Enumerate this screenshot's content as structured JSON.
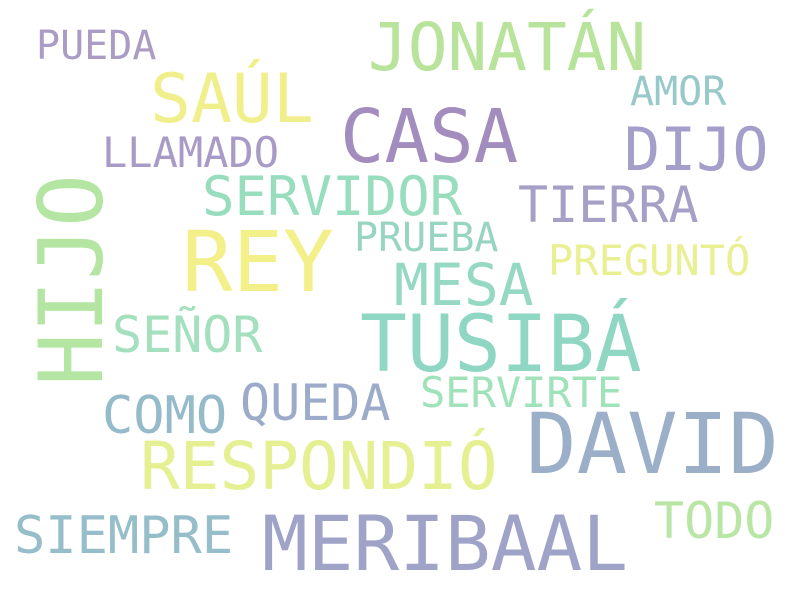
{
  "word_cloud": {
    "words": [
      {
        "text": "JONATÁN",
        "color": "#b6e39a"
      },
      {
        "text": "PUEDA",
        "color": "#a99bc4"
      },
      {
        "text": "SAÚL",
        "color": "#f0ef8a"
      },
      {
        "text": "AMOR",
        "color": "#95c7c9"
      },
      {
        "text": "CASA",
        "color": "#a28bbd"
      },
      {
        "text": "DIJO",
        "color": "#a39ec9"
      },
      {
        "text": "LLAMADO",
        "color": "#a89ac6"
      },
      {
        "text": "SERVIDOR",
        "color": "#95ddbd"
      },
      {
        "text": "TIERRA",
        "color": "#a59fc6"
      },
      {
        "text": "HIJO",
        "color": "#b3e5a2"
      },
      {
        "text": "REY",
        "color": "#f3ef87"
      },
      {
        "text": "PRUEBA",
        "color": "#95d5c1"
      },
      {
        "text": "PREGUNTÓ",
        "color": "#e9ef91"
      },
      {
        "text": "MESA",
        "color": "#93d8c2"
      },
      {
        "text": "SEÑOR",
        "color": "#a3e0bc"
      },
      {
        "text": "TUSIBÁ",
        "color": "#8dd6c2"
      },
      {
        "text": "COMO",
        "color": "#93b9c8"
      },
      {
        "text": "QUEDA",
        "color": "#9aaac8"
      },
      {
        "text": "SERVIRTE",
        "color": "#9fe2b8"
      },
      {
        "text": "DAVID",
        "color": "#9aaec8"
      },
      {
        "text": "RESPONDIÓ",
        "color": "#e4f08f"
      },
      {
        "text": "TODO",
        "color": "#b8e6a4"
      },
      {
        "text": "SIEMPRE",
        "color": "#94bcc9"
      },
      {
        "text": "MERIBAAL",
        "color": "#9ea2c6"
      }
    ]
  }
}
